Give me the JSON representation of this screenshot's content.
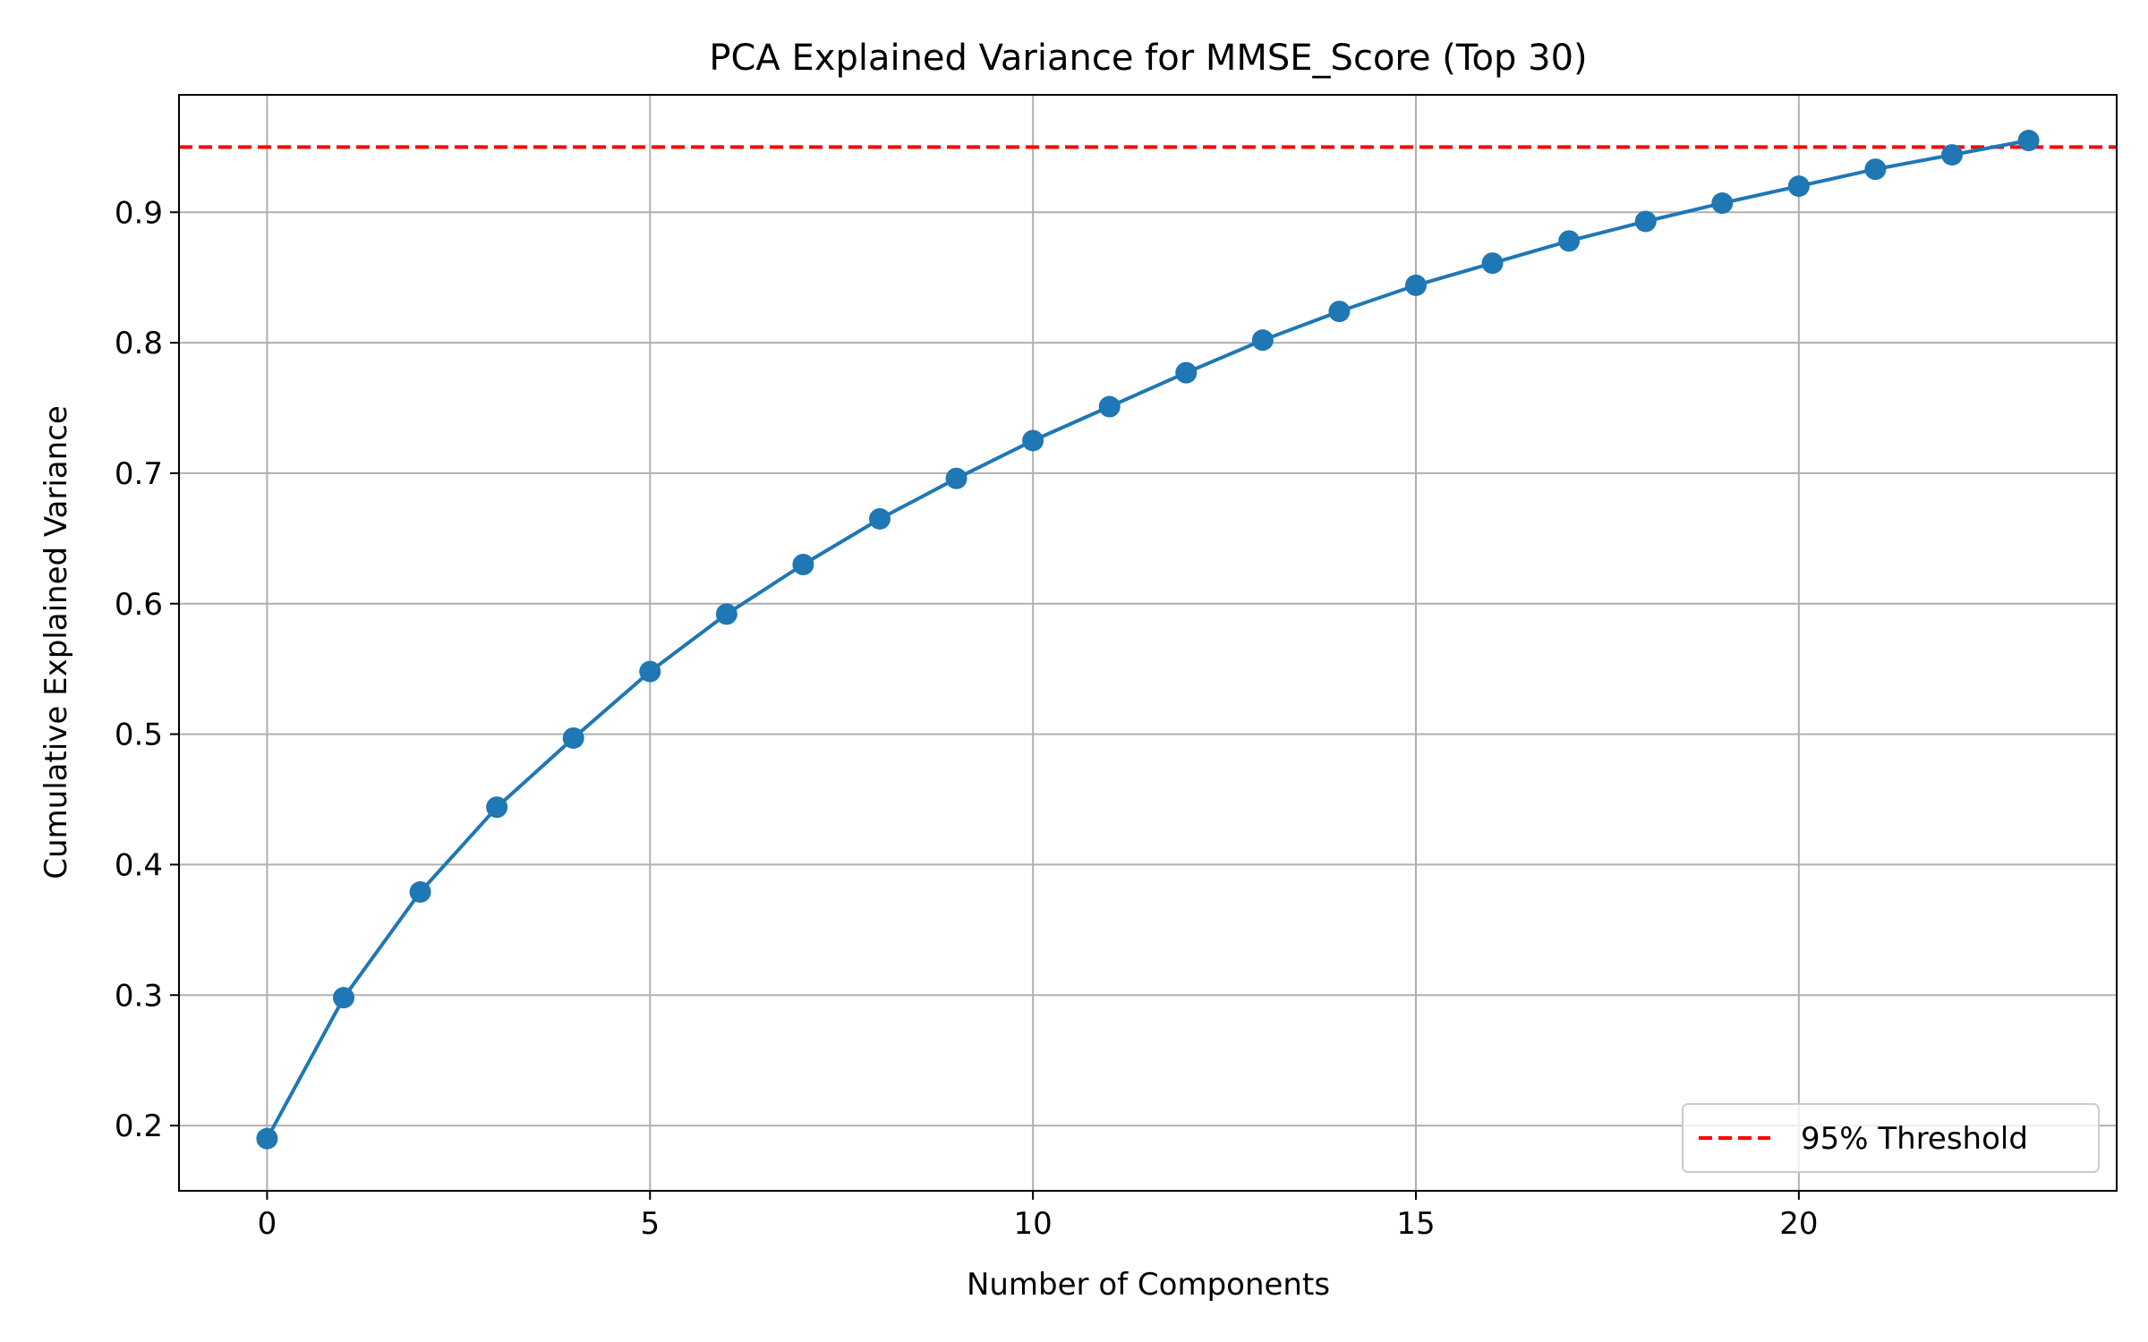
{
  "chart_data": {
    "type": "line",
    "title": "PCA Explained Variance for MMSE_Score (Top 30)",
    "xlabel": "Number of Components",
    "ylabel": "Cumulative Explained Variance",
    "xlim": [
      -1.15,
      24.15
    ],
    "ylim": [
      0.15,
      0.99
    ],
    "xticks": [
      0,
      5,
      10,
      15,
      20
    ],
    "yticks": [
      0.2,
      0.3,
      0.4,
      0.5,
      0.6,
      0.7,
      0.8,
      0.9
    ],
    "grid": true,
    "legend_position": "bottom-right",
    "series": [
      {
        "color": "#1f77b4",
        "marker": "circle",
        "x": [
          0,
          1,
          2,
          3,
          4,
          5,
          6,
          7,
          8,
          9,
          10,
          11,
          12,
          13,
          14,
          15,
          16,
          17,
          18,
          19,
          20,
          21,
          22,
          23
        ],
        "values": [
          0.19,
          0.298,
          0.379,
          0.444,
          0.497,
          0.548,
          0.592,
          0.63,
          0.665,
          0.696,
          0.725,
          0.751,
          0.777,
          0.802,
          0.824,
          0.844,
          0.861,
          0.878,
          0.893,
          0.907,
          0.92,
          0.933,
          0.944,
          0.955
        ]
      }
    ],
    "threshold": {
      "name": "95% Threshold",
      "value": 0.95,
      "color": "#ff0000",
      "style": "dashed"
    }
  }
}
